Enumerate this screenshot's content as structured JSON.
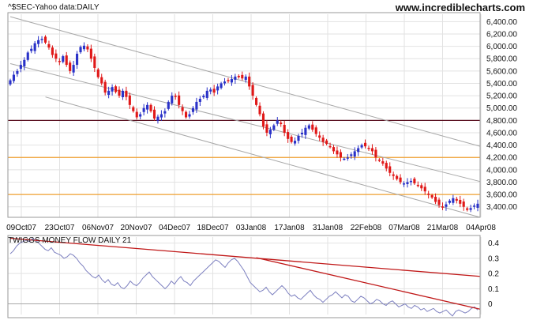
{
  "colors": {
    "background": "#ffffff",
    "grid": "#e2e2e2",
    "candle_up": "#2a32c8",
    "candle_down": "#e01818",
    "resistance_dark": "#5a1020",
    "resistance_orange": "#f0a030",
    "channel": "#a8a8a8",
    "money_flow": "#7d80c0",
    "trendline": "#c01818"
  },
  "header": {
    "title": "^$SEC-Yahoo data:DAILY",
    "brand": "www.incrediblecharts.com"
  },
  "chart_data": [
    {
      "type": "candlestick",
      "title": "^$SEC-Yahoo data:DAILY",
      "x_tick_labels": [
        "09Oct07",
        "23Oct07",
        "06Nov07",
        "20Nov07",
        "04Dec07",
        "18Dec07",
        "03Jan08",
        "17Jan08",
        "31Jan08",
        "22Feb08",
        "07Mar08",
        "21Mar08",
        "04Apr08"
      ],
      "y_tick_labels": [
        "3,400.00",
        "3,600.00",
        "3,800.00",
        "4,000.00",
        "4,200.00",
        "4,400.00",
        "4,600.00",
        "4,800.00",
        "5,000.00",
        "5,200.00",
        "5,400.00",
        "5,600.00",
        "5,800.00",
        "6,000.00",
        "6,200.00",
        "6,400.00"
      ],
      "ylim": [
        3230,
        6520
      ],
      "grid": true,
      "horizontal_lines": [
        {
          "value": 4800,
          "color": "#5a1020"
        },
        {
          "value": 4200,
          "color": "#f0a030"
        },
        {
          "value": 3600,
          "color": "#f0a030"
        }
      ],
      "channel_lines": [
        {
          "from": [
            0,
            6480
          ],
          "to": [
            148,
            4380
          ]
        },
        {
          "from": [
            0,
            5720
          ],
          "to": [
            148,
            3810
          ]
        },
        {
          "from": [
            10,
            5180
          ],
          "to": [
            148,
            3230
          ]
        }
      ],
      "closes": [
        5450,
        5540,
        5600,
        5700,
        5780,
        5900,
        5960,
        6050,
        6100,
        6120,
        6060,
        5980,
        5860,
        5800,
        5760,
        5840,
        5700,
        5600,
        5700,
        5880,
        5990,
        6010,
        5950,
        5800,
        5650,
        5500,
        5400,
        5250,
        5280,
        5340,
        5260,
        5200,
        5280,
        5180,
        5050,
        4950,
        4850,
        4900,
        5000,
        5050,
        4950,
        4830,
        4860,
        4900,
        4950,
        5100,
        5200,
        5180,
        5050,
        4950,
        4850,
        4900,
        5000,
        5100,
        5150,
        5200,
        5280,
        5300,
        5250,
        5350,
        5400,
        5430,
        5450,
        5470,
        5510,
        5500,
        5480,
        5510,
        5350,
        5200,
        5050,
        4900,
        4700,
        4600,
        4650,
        4720,
        4800,
        4740,
        4600,
        4500,
        4450,
        4470,
        4550,
        4600,
        4680,
        4720,
        4650,
        4580,
        4520,
        4450,
        4420,
        4380,
        4300,
        4250,
        4200,
        4180,
        4200,
        4250,
        4300,
        4350,
        4400,
        4380,
        4350,
        4300,
        4200,
        4150,
        4100,
        4020,
        3950,
        3900,
        3850,
        3800,
        3780,
        3800,
        3820,
        3780,
        3750,
        3700,
        3650,
        3600,
        3550,
        3480,
        3430,
        3400,
        3440,
        3500,
        3540,
        3500,
        3450,
        3400,
        3350,
        3380,
        3420,
        3450
      ]
    },
    {
      "type": "line",
      "title": "TWIGGS MONEY FLOW DAILY 21",
      "y_tick_labels": [
        "0",
        "0.1",
        "0.2",
        "0.3",
        "0.4"
      ],
      "ylim": [
        -0.07,
        0.44
      ],
      "grid": true,
      "horizontal_lines": [
        {
          "value": 0,
          "color": "#a8a8a8"
        }
      ],
      "trendlines": [
        {
          "from": [
            0,
            0.432
          ],
          "to": [
            148,
            0.181
          ]
        },
        {
          "from": [
            70,
            0.304
          ],
          "to": [
            148,
            -0.035
          ]
        }
      ],
      "values": [
        0.33,
        0.35,
        0.38,
        0.4,
        0.41,
        0.42,
        0.41,
        0.43,
        0.42,
        0.4,
        0.38,
        0.36,
        0.35,
        0.37,
        0.34,
        0.33,
        0.32,
        0.3,
        0.31,
        0.33,
        0.32,
        0.3,
        0.27,
        0.25,
        0.22,
        0.2,
        0.18,
        0.17,
        0.19,
        0.16,
        0.14,
        0.16,
        0.13,
        0.12,
        0.14,
        0.11,
        0.1,
        0.12,
        0.15,
        0.13,
        0.12,
        0.14,
        0.17,
        0.19,
        0.21,
        0.18,
        0.16,
        0.14,
        0.12,
        0.1,
        0.12,
        0.15,
        0.13,
        0.16,
        0.18,
        0.15,
        0.14,
        0.12,
        0.15,
        0.17,
        0.19,
        0.21,
        0.23,
        0.25,
        0.27,
        0.29,
        0.28,
        0.26,
        0.24,
        0.27,
        0.29,
        0.3,
        0.28,
        0.25,
        0.22,
        0.18,
        0.14,
        0.12,
        0.1,
        0.08,
        0.09,
        0.11,
        0.08,
        0.06,
        0.08,
        0.1,
        0.12,
        0.1,
        0.07,
        0.05,
        0.06,
        0.04,
        0.03,
        0.05,
        0.07,
        0.09,
        0.06,
        0.04,
        0.03,
        0.01,
        0.03,
        0.05,
        0.06,
        0.08,
        0.06,
        0.04,
        0.06,
        0.05,
        0.02,
        0.01,
        0.03,
        0.05,
        0.04,
        0.02,
        0.0,
        0.01,
        0.03,
        0.02,
        0.0,
        -0.01,
        0.01,
        0.02,
        0.0,
        -0.02,
        -0.01,
        0.0,
        -0.02,
        -0.03,
        -0.01,
        -0.02,
        -0.04,
        -0.03,
        -0.05,
        -0.04,
        -0.03,
        -0.05,
        -0.06,
        -0.05,
        -0.04,
        -0.06,
        -0.08,
        -0.05,
        -0.04,
        -0.05,
        -0.06,
        -0.05,
        -0.03,
        -0.02,
        -0.04
      ]
    }
  ]
}
